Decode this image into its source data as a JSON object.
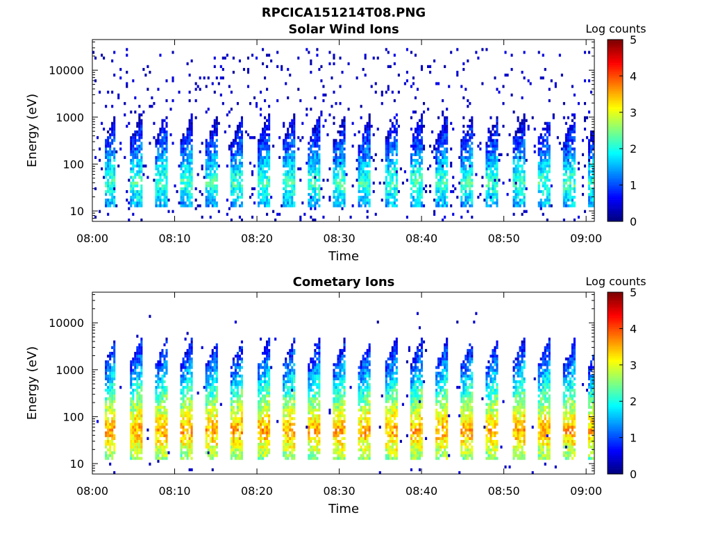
{
  "figure": {
    "title": "RPCICA151214T08.PNG"
  },
  "chart_data": [
    {
      "type": "heatmap",
      "title": "Solar Wind Ions",
      "xlabel": "Time",
      "ylabel": "Energy (eV)",
      "x_range": [
        "08:00",
        "09:01"
      ],
      "x_ticks": [
        "08:00",
        "08:10",
        "08:20",
        "08:30",
        "08:40",
        "08:50",
        "09:00"
      ],
      "y_scale": "log",
      "y_range": [
        6,
        45000
      ],
      "y_ticks": [
        10,
        100,
        1000,
        10000
      ],
      "y_tick_labels": [
        "10",
        "100",
        "1000",
        "10000"
      ],
      "colorbar": {
        "label": "Log counts",
        "range": [
          0,
          5
        ],
        "ticks": [
          "0",
          "1",
          "2",
          "3",
          "4",
          "5"
        ],
        "colormap": "jet"
      },
      "pattern": {
        "burst_period_minutes": 3.1,
        "burst_energy_core_eV": 40,
        "burst_peak_log_counts": 2.2,
        "burst_max_energy_eV": 500,
        "background_scatter_max_eV": 30000
      }
    },
    {
      "type": "heatmap",
      "title": "Cometary Ions",
      "xlabel": "Time",
      "ylabel": "Energy (eV)",
      "x_range": [
        "08:00",
        "09:01"
      ],
      "x_ticks": [
        "08:00",
        "08:10",
        "08:20",
        "08:30",
        "08:40",
        "08:50",
        "09:00"
      ],
      "y_scale": "log",
      "y_range": [
        6,
        45000
      ],
      "y_ticks": [
        10,
        100,
        1000,
        10000
      ],
      "y_tick_labels": [
        "10",
        "100",
        "1000",
        "10000"
      ],
      "colorbar": {
        "label": "Log counts",
        "range": [
          0,
          5
        ],
        "ticks": [
          "0",
          "1",
          "2",
          "3",
          "4",
          "5"
        ],
        "colormap": "jet"
      },
      "pattern": {
        "burst_period_minutes": 3.1,
        "burst_energy_core_eV": 50,
        "burst_peak_log_counts": 3.6,
        "burst_max_energy_eV": 2000,
        "background_scatter_max_eV": 20000
      }
    }
  ]
}
